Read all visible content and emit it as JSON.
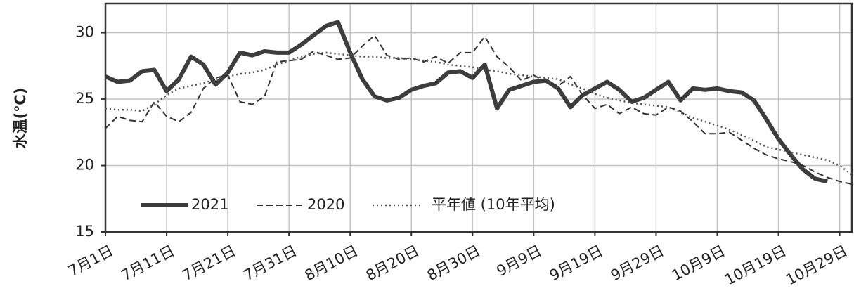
{
  "chart_data": {
    "type": "line",
    "y_label": "水温(℃)",
    "categories": [
      "7月1日",
      null,
      null,
      null,
      null,
      "7月11日",
      null,
      null,
      null,
      null,
      "7月21日",
      null,
      null,
      null,
      null,
      "7月31日",
      null,
      null,
      null,
      null,
      "8月10日",
      null,
      null,
      null,
      null,
      "8月20日",
      null,
      null,
      null,
      null,
      "8月30日",
      null,
      null,
      null,
      null,
      "9月9日",
      null,
      null,
      null,
      null,
      "9月19日",
      null,
      null,
      null,
      null,
      "9月29日",
      null,
      null,
      null,
      null,
      "10月9日",
      null,
      null,
      null,
      null,
      "10月19日",
      null,
      null,
      null,
      null,
      "10月29日",
      null
    ],
    "series": [
      {
        "name": "2021",
        "color": "#3d3d3d",
        "dash": "solid",
        "width": 6,
        "values": [
          26.7,
          26.3,
          26.4,
          27.1,
          27.2,
          25.6,
          26.5,
          28.2,
          27.6,
          26.1,
          27.0,
          28.5,
          28.3,
          28.6,
          28.5,
          28.5,
          29.1,
          29.8,
          30.5,
          30.8,
          28.5,
          26.5,
          25.2,
          24.9,
          25.1,
          25.7,
          26.0,
          26.2,
          27.0,
          27.1,
          26.6,
          27.6,
          24.3,
          25.7,
          26.0,
          26.3,
          26.4,
          25.8,
          24.4,
          25.3,
          25.8,
          26.3,
          25.7,
          24.8,
          25.1,
          25.7,
          26.3,
          24.9,
          25.8,
          25.7,
          25.8,
          25.6,
          25.5,
          24.9,
          23.5,
          22.0,
          20.8,
          19.7,
          19.0,
          18.8,
          null,
          null
        ]
      },
      {
        "name": "2020",
        "color": "#333333",
        "dash": "dashed",
        "width": 2,
        "values": [
          22.8,
          23.7,
          23.4,
          23.3,
          24.8,
          23.7,
          23.3,
          24.0,
          25.8,
          26.6,
          26.8,
          24.8,
          24.6,
          25.2,
          27.8,
          27.9,
          28.0,
          28.6,
          28.3,
          28.0,
          28.1,
          29.0,
          29.8,
          28.3,
          28.0,
          28.1,
          27.8,
          28.2,
          27.7,
          28.5,
          28.5,
          29.7,
          28.2,
          27.4,
          26.4,
          26.8,
          26.3,
          26.0,
          26.7,
          25.3,
          24.3,
          24.6,
          23.9,
          24.4,
          23.9,
          23.8,
          24.4,
          24.1,
          23.3,
          22.4,
          22.4,
          22.5,
          21.9,
          21.3,
          20.8,
          20.5,
          20.3,
          20.0,
          19.5,
          19.1,
          18.8,
          18.6
        ]
      },
      {
        "name": "平年値 (10年平均)",
        "color": "#555555",
        "dash": "dotted",
        "width": 2.5,
        "values": [
          24.3,
          24.2,
          24.2,
          24.1,
          24.6,
          25.3,
          25.8,
          26.0,
          26.2,
          26.5,
          26.7,
          26.9,
          27.0,
          27.2,
          27.6,
          27.9,
          28.2,
          28.4,
          28.5,
          28.4,
          28.3,
          28.2,
          28.2,
          28.1,
          28.1,
          28.0,
          27.9,
          27.8,
          27.6,
          27.5,
          27.4,
          27.2,
          27.1,
          26.9,
          26.8,
          26.7,
          26.6,
          26.5,
          26.1,
          25.8,
          25.4,
          25.1,
          24.9,
          24.7,
          24.6,
          24.5,
          24.4,
          24.0,
          23.6,
          23.3,
          23.0,
          22.7,
          22.3,
          21.9,
          21.4,
          21.2,
          21.0,
          20.8,
          20.6,
          20.4,
          20.0,
          19.3
        ]
      }
    ],
    "ylim": [
      15,
      32.2
    ],
    "yticks": [
      15,
      20,
      25,
      30
    ],
    "grid": true,
    "legend": "lower-left"
  }
}
